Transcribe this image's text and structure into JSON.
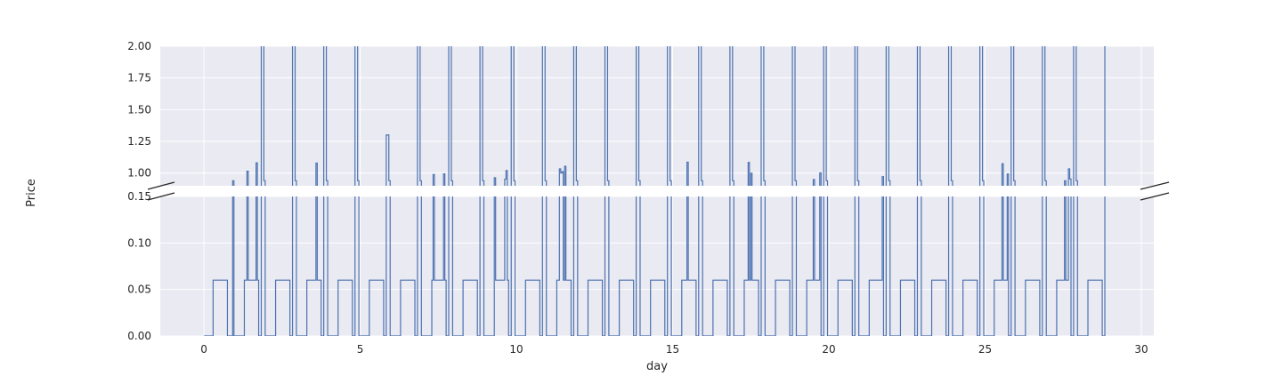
{
  "chart_data": {
    "type": "line",
    "subtype": "step",
    "broken_y_axis": true,
    "xlabel": "day",
    "ylabel": "Price",
    "xlim": [
      -1.4,
      30.4
    ],
    "x_ticks": [
      0,
      5,
      10,
      15,
      20,
      25,
      30
    ],
    "x_tick_labels": [
      "0",
      "5",
      "10",
      "15",
      "20",
      "25",
      "30"
    ],
    "grid": true,
    "colors": {
      "series": "#4c72b0",
      "background": "#eaeaf2",
      "grid": "#ffffff",
      "text": "#262626"
    },
    "panels": [
      {
        "name": "upper",
        "ylim": [
          0.9,
          2.0
        ],
        "y_ticks": [
          1.0,
          1.25,
          1.5,
          1.75,
          2.0
        ],
        "y_tick_labels": [
          "1.00",
          "1.25",
          "1.50",
          "1.75",
          "2.00"
        ]
      },
      {
        "name": "lower",
        "ylim": [
          0.0,
          0.15
        ],
        "y_ticks": [
          0.0,
          0.05,
          0.1,
          0.15
        ],
        "y_tick_labels": [
          "0.00",
          "0.05",
          "0.10",
          "0.15"
        ]
      }
    ],
    "series": [
      {
        "pattern": "daily_cycle",
        "day_start": 0,
        "day_end": 28.875,
        "step_hours": 1,
        "typical_day_hours": [
          0.0,
          0.0,
          0.0,
          0.0,
          0.0,
          0.0,
          0.0,
          0.06,
          0.06,
          0.06,
          0.06,
          0.06,
          0.06,
          0.06,
          0.06,
          0.06,
          0.06,
          0.06,
          0.0,
          0.0,
          2.1,
          2.1,
          0.94,
          0.0
        ],
        "daily_peak_max": [
          0,
          2.1,
          2.1,
          2.1,
          2.1,
          1.3,
          2.1,
          2.1,
          2.1,
          2.1,
          2.1,
          2.1,
          2.1,
          2.1,
          2.1,
          2.1,
          2.1,
          2.1,
          2.1,
          2.1,
          2.1,
          2.1,
          2.1,
          2.1,
          2.1,
          2.1,
          2.1,
          2.1,
          2.1
        ]
      }
    ]
  }
}
